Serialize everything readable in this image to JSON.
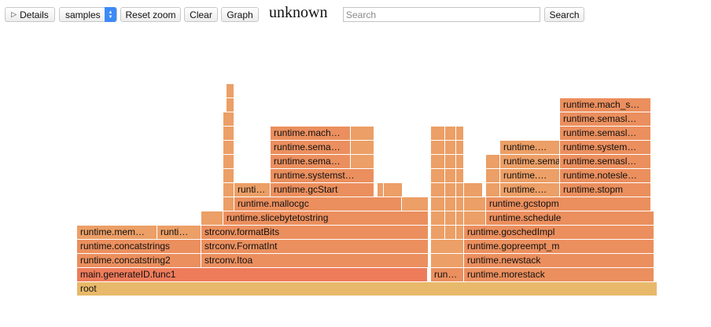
{
  "toolbar": {
    "details_label": "Details",
    "details_icon": "triangle-right-icon",
    "select_value": "samples",
    "reset_zoom_label": "Reset zoom",
    "clear_label": "Clear",
    "graph_label": "Graph",
    "title": "unknown",
    "search_placeholder": "Search",
    "search_value": "",
    "search_button_label": "Search"
  },
  "colors": {
    "root": "#e8b96a",
    "main_red": "#ee7c5b",
    "stack_orange": "#eb8f5e",
    "light_orange": "#ec9f66",
    "mid_orange": "#e99561"
  },
  "flame": [
    {
      "label": "root",
      "color": "#e8b96a"
    },
    {
      "label": "main.generateID.func1",
      "color": "#ee7c5b"
    },
    {
      "label": "run…",
      "color": "#eb8f5e"
    },
    {
      "label": "runtime.morestack",
      "color": "#eb8f5e"
    },
    {
      "label": "runtime.concatstring2",
      "color": "#eb8f5e"
    },
    {
      "label": "strconv.Itoa",
      "color": "#eb8f5e"
    },
    {
      "label": "",
      "color": "#ec9f66"
    },
    {
      "label": "runtime.newstack",
      "color": "#eb8f5e"
    },
    {
      "label": "runtime.concatstrings",
      "color": "#eb8f5e"
    },
    {
      "label": "strconv.FormatInt",
      "color": "#eb8f5e"
    },
    {
      "label": "",
      "color": "#ec9f66"
    },
    {
      "label": "runtime.gopreempt_m",
      "color": "#eb8f5e"
    },
    {
      "label": "runtime.mem…",
      "color": "#ec9f66"
    },
    {
      "label": "runti…",
      "color": "#ec9f66"
    },
    {
      "label": "strconv.formatBits",
      "color": "#eb8f5e"
    },
    {
      "label": "",
      "color": "#ec9f66"
    },
    {
      "label": "",
      "color": "#ec9f66"
    },
    {
      "label": "",
      "color": "#ec9f66"
    },
    {
      "label": "runtime.goschedImpl",
      "color": "#eb8f5e"
    },
    {
      "label": "",
      "color": "#ec9f66"
    },
    {
      "label": "runtime.slicebytetostring",
      "color": "#eb8f5e"
    },
    {
      "label": "",
      "color": "#ec9f66"
    },
    {
      "label": "",
      "color": "#ec9f66"
    },
    {
      "label": "",
      "color": "#ec9f66"
    },
    {
      "label": "",
      "color": "#ec9f66"
    },
    {
      "label": "runtime.schedule",
      "color": "#eb8f5e"
    },
    {
      "label": "",
      "color": "#ec9f66"
    },
    {
      "label": "runtime.mallocgc",
      "color": "#eb8f5e"
    },
    {
      "label": "",
      "color": "#ec9f66"
    },
    {
      "label": "",
      "color": "#ec9f66"
    },
    {
      "label": "",
      "color": "#ec9f66"
    },
    {
      "label": "",
      "color": "#ec9f66"
    },
    {
      "label": "",
      "color": "#ec9f66"
    },
    {
      "label": "",
      "color": "#ec9f66"
    },
    {
      "label": "runtime.gcstopm",
      "color": "#eb8f5e"
    },
    {
      "label": "",
      "color": "#ec9f66"
    },
    {
      "label": "runti…",
      "color": "#ec9f66"
    },
    {
      "label": "runtime.gcStart",
      "color": "#eb8f5e"
    },
    {
      "label": "",
      "color": "#ec9f66"
    },
    {
      "label": "",
      "color": "#ec9f66"
    },
    {
      "label": "",
      "color": "#ec9f66"
    },
    {
      "label": "",
      "color": "#ec9f66"
    },
    {
      "label": "",
      "color": "#ec9f66"
    },
    {
      "label": "",
      "color": "#ec9f66"
    },
    {
      "label": "",
      "color": "#ec9f66"
    },
    {
      "label": "",
      "color": "#ec9f66"
    },
    {
      "label": "runtime.…",
      "color": "#ec9f66"
    },
    {
      "label": "runtime.stopm",
      "color": "#eb8f5e"
    },
    {
      "label": "",
      "color": "#ec9f66"
    },
    {
      "label": "runtime.systemst…",
      "color": "#eb8f5e"
    },
    {
      "label": "",
      "color": "#ec9f66"
    },
    {
      "label": "",
      "color": "#ec9f66"
    },
    {
      "label": "",
      "color": "#ec9f66"
    },
    {
      "label": "",
      "color": "#ec9f66"
    },
    {
      "label": "",
      "color": "#ec9f66"
    },
    {
      "label": "runtime.…",
      "color": "#ec9f66"
    },
    {
      "label": "runtime.notesle…",
      "color": "#eb8f5e"
    },
    {
      "label": "",
      "color": "#ec9f66"
    },
    {
      "label": "runtime.sema…",
      "color": "#eb8f5e"
    },
    {
      "label": "",
      "color": "#ec9f66"
    },
    {
      "label": "",
      "color": "#ec9f66"
    },
    {
      "label": "",
      "color": "#ec9f66"
    },
    {
      "label": "",
      "color": "#ec9f66"
    },
    {
      "label": "",
      "color": "#ec9f66"
    },
    {
      "label": "runtime.semas…",
      "color": "#ec9f66"
    },
    {
      "label": "runtime.semasl…",
      "color": "#eb8f5e"
    },
    {
      "label": "",
      "color": "#ec9f66"
    },
    {
      "label": "runtime.sema…",
      "color": "#eb8f5e"
    },
    {
      "label": "",
      "color": "#ec9f66"
    },
    {
      "label": "",
      "color": "#ec9f66"
    },
    {
      "label": "",
      "color": "#ec9f66"
    },
    {
      "label": "",
      "color": "#ec9f66"
    },
    {
      "label": "runtime.…",
      "color": "#ec9f66"
    },
    {
      "label": "runtime.system…",
      "color": "#eb8f5e"
    },
    {
      "label": "",
      "color": "#ec9f66"
    },
    {
      "label": "runtime.mach…",
      "color": "#eb8f5e"
    },
    {
      "label": "",
      "color": "#ec9f66"
    },
    {
      "label": "",
      "color": "#ec9f66"
    },
    {
      "label": "",
      "color": "#ec9f66"
    },
    {
      "label": "",
      "color": "#ec9f66"
    },
    {
      "label": "runtime.semasl…",
      "color": "#eb8f5e"
    },
    {
      "label": "runtime.semasl…",
      "color": "#eb8f5e"
    },
    {
      "label": "",
      "color": "#ec9f66"
    },
    {
      "label": "runtime.mach_s…",
      "color": "#eb8f5e"
    },
    {
      "label": "",
      "color": "#ec9f66"
    },
    {
      "label": "",
      "color": "#ec9f66"
    }
  ]
}
